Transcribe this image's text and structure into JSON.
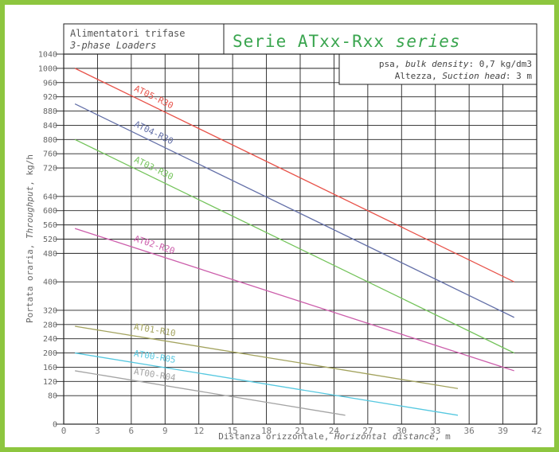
{
  "chart_data": {
    "type": "line",
    "title_line1": "Alimentatori trifase",
    "title_line2": "3-phase Loaders",
    "big_title_prefix": "Serie ATxx-Rxx",
    "big_title_suffix": "series",
    "info_line1_prefix": "psa,",
    "info_line1_italic": "bulk density",
    "info_line1_suffix": ": 0,7 kg/dm3",
    "info_line2_prefix": "Altezza,",
    "info_line2_italic": "Suction head",
    "info_line2_suffix": ": 3 m",
    "xlabel_prefix": "Distanza orizzontale,",
    "xlabel_italic": "Horizontal distance",
    "xlabel_suffix": ", m",
    "ylabel_prefix": "Portata oraria,",
    "ylabel_italic": "Throughput",
    "ylabel_suffix": ", kg/h",
    "xlim": [
      0,
      42
    ],
    "ylim": [
      0,
      1040
    ],
    "x_ticks": [
      "0",
      "3",
      "6",
      "9",
      "12",
      "15",
      "18",
      "21",
      "24",
      "27",
      "30",
      "33",
      "36",
      "39",
      "42"
    ],
    "y_ticks": [
      "0",
      "80",
      "120",
      "160",
      "200",
      "240",
      "280",
      "320",
      "400",
      "480",
      "520",
      "560",
      "600",
      "640",
      "720",
      "760",
      "800",
      "840",
      "880",
      "920",
      "960",
      "1000",
      "1040"
    ],
    "grid": true,
    "series": [
      {
        "name": "AT05-R30",
        "color": "#e8534a",
        "x": [
          1,
          40
        ],
        "y": [
          1000,
          400
        ]
      },
      {
        "name": "AT04-R30",
        "color": "#6470a8",
        "x": [
          1,
          40
        ],
        "y": [
          900,
          300
        ]
      },
      {
        "name": "AT03-R30",
        "color": "#73c35a",
        "x": [
          1,
          40
        ],
        "y": [
          800,
          200
        ]
      },
      {
        "name": "AT02-R20",
        "color": "#cc5eab",
        "x": [
          1,
          40
        ],
        "y": [
          550,
          150
        ]
      },
      {
        "name": "AT01-R10",
        "color": "#a3a35e",
        "x": [
          1,
          35
        ],
        "y": [
          275,
          100
        ]
      },
      {
        "name": "AT00-R05",
        "color": "#56c8e0",
        "x": [
          1,
          35
        ],
        "y": [
          200,
          25
        ]
      },
      {
        "name": "AT00-R04",
        "color": "#a4a4a4",
        "x": [
          1,
          25
        ],
        "y": [
          150,
          25
        ]
      }
    ]
  }
}
